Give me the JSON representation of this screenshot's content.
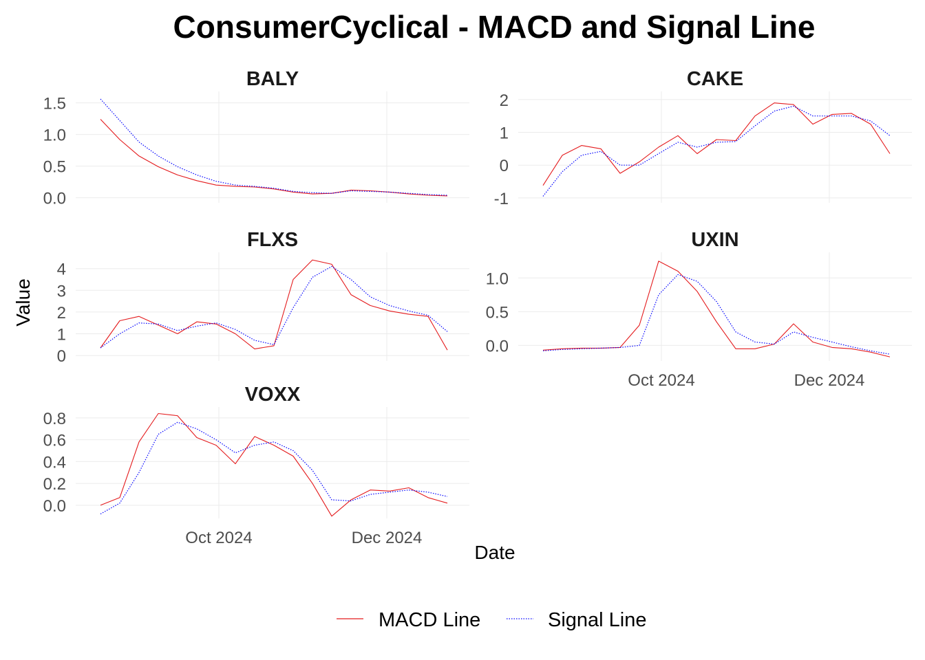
{
  "chart_data": {
    "type": "line",
    "title": "ConsumerCyclical - MACD and Signal Line",
    "xlabel": "Date",
    "ylabel": "Value",
    "date_ticks": [
      "Oct 2024",
      "Dec 2024"
    ],
    "x_range": [
      "2024-08-10",
      "2024-12-31"
    ],
    "legend_position": "bottom",
    "legend": [
      {
        "name": "MACD Line",
        "color": "#e41a1c",
        "style": "solid"
      },
      {
        "name": "Signal Line",
        "color": "#0000ff",
        "style": "dotted"
      }
    ],
    "panels": [
      {
        "name": "BALY",
        "ylim": [
          -0.08,
          1.68
        ],
        "yticks": [
          0.0,
          0.5,
          1.0,
          1.5
        ],
        "ytick_labels": [
          "0.0",
          "0.5",
          "1.0",
          "1.5"
        ],
        "series": [
          {
            "name": "MACD Line",
            "x": [
              "2024-08-19",
              "2024-08-26",
              "2024-09-02",
              "2024-09-09",
              "2024-09-16",
              "2024-09-23",
              "2024-09-30",
              "2024-10-07",
              "2024-10-14",
              "2024-10-21",
              "2024-10-28",
              "2024-11-04",
              "2024-11-11",
              "2024-11-18",
              "2024-11-25",
              "2024-12-02",
              "2024-12-09",
              "2024-12-16",
              "2024-12-23"
            ],
            "values": [
              1.24,
              0.92,
              0.66,
              0.49,
              0.36,
              0.27,
              0.2,
              0.18,
              0.17,
              0.14,
              0.09,
              0.06,
              0.07,
              0.12,
              0.11,
              0.09,
              0.06,
              0.04,
              0.03
            ]
          },
          {
            "name": "Signal Line",
            "x": [
              "2024-08-19",
              "2024-08-26",
              "2024-09-02",
              "2024-09-09",
              "2024-09-16",
              "2024-09-23",
              "2024-09-30",
              "2024-10-07",
              "2024-10-14",
              "2024-10-21",
              "2024-10-28",
              "2024-11-04",
              "2024-11-11",
              "2024-11-18",
              "2024-11-25",
              "2024-12-02",
              "2024-12-09",
              "2024-12-16",
              "2024-12-23"
            ],
            "values": [
              1.56,
              1.22,
              0.88,
              0.66,
              0.49,
              0.36,
              0.26,
              0.2,
              0.18,
              0.15,
              0.1,
              0.08,
              0.07,
              0.11,
              0.1,
              0.09,
              0.07,
              0.05,
              0.04
            ]
          }
        ]
      },
      {
        "name": "CAKE",
        "ylim": [
          -1.15,
          2.25
        ],
        "yticks": [
          -1,
          0,
          1,
          2
        ],
        "ytick_labels": [
          "-1",
          "0",
          "1",
          "2"
        ],
        "series": [
          {
            "name": "MACD Line",
            "x": [
              "2024-08-19",
              "2024-08-26",
              "2024-09-02",
              "2024-09-09",
              "2024-09-16",
              "2024-09-23",
              "2024-09-30",
              "2024-10-07",
              "2024-10-14",
              "2024-10-21",
              "2024-10-28",
              "2024-11-04",
              "2024-11-11",
              "2024-11-18",
              "2024-11-25",
              "2024-12-02",
              "2024-12-09",
              "2024-12-16",
              "2024-12-23"
            ],
            "values": [
              -0.62,
              0.3,
              0.6,
              0.5,
              -0.25,
              0.1,
              0.55,
              0.9,
              0.35,
              0.78,
              0.75,
              1.5,
              1.9,
              1.85,
              1.25,
              1.55,
              1.58,
              1.25,
              0.35
            ]
          },
          {
            "name": "Signal Line",
            "x": [
              "2024-08-19",
              "2024-08-26",
              "2024-09-02",
              "2024-09-09",
              "2024-09-16",
              "2024-09-23",
              "2024-09-30",
              "2024-10-07",
              "2024-10-14",
              "2024-10-21",
              "2024-10-28",
              "2024-11-04",
              "2024-11-11",
              "2024-11-18",
              "2024-11-25",
              "2024-12-02",
              "2024-12-09",
              "2024-12-16",
              "2024-12-23"
            ],
            "values": [
              -0.95,
              -0.2,
              0.3,
              0.42,
              0.0,
              0.0,
              0.35,
              0.7,
              0.55,
              0.7,
              0.72,
              1.2,
              1.65,
              1.8,
              1.5,
              1.5,
              1.5,
              1.35,
              0.9
            ]
          }
        ]
      },
      {
        "name": "FLXS",
        "ylim": [
          -0.25,
          4.75
        ],
        "yticks": [
          0,
          1,
          2,
          3,
          4
        ],
        "ytick_labels": [
          "0",
          "1",
          "2",
          "3",
          "4"
        ],
        "series": [
          {
            "name": "MACD Line",
            "x": [
              "2024-08-19",
              "2024-08-26",
              "2024-09-02",
              "2024-09-09",
              "2024-09-16",
              "2024-09-23",
              "2024-09-30",
              "2024-10-07",
              "2024-10-14",
              "2024-10-21",
              "2024-10-28",
              "2024-11-04",
              "2024-11-11",
              "2024-11-18",
              "2024-11-25",
              "2024-12-02",
              "2024-12-09",
              "2024-12-16",
              "2024-12-23"
            ],
            "values": [
              0.35,
              1.6,
              1.8,
              1.4,
              1.0,
              1.55,
              1.45,
              1.0,
              0.3,
              0.45,
              3.5,
              4.4,
              4.2,
              2.8,
              2.3,
              2.05,
              1.9,
              1.8,
              0.25
            ]
          },
          {
            "name": "Signal Line",
            "x": [
              "2024-08-19",
              "2024-08-26",
              "2024-09-02",
              "2024-09-09",
              "2024-09-16",
              "2024-09-23",
              "2024-09-30",
              "2024-10-07",
              "2024-10-14",
              "2024-10-21",
              "2024-10-28",
              "2024-11-04",
              "2024-11-11",
              "2024-11-18",
              "2024-11-25",
              "2024-12-02",
              "2024-12-09",
              "2024-12-16",
              "2024-12-23"
            ],
            "values": [
              0.35,
              1.0,
              1.5,
              1.45,
              1.15,
              1.35,
              1.5,
              1.2,
              0.7,
              0.5,
              2.2,
              3.6,
              4.1,
              3.5,
              2.7,
              2.3,
              2.05,
              1.85,
              1.1
            ]
          }
        ]
      },
      {
        "name": "UXIN",
        "ylim": [
          -0.23,
          1.38
        ],
        "yticks": [
          0.0,
          0.5,
          1.0
        ],
        "ytick_labels": [
          "0.0",
          "0.5",
          "1.0"
        ],
        "series": [
          {
            "name": "MACD Line",
            "x": [
              "2024-08-19",
              "2024-08-26",
              "2024-09-02",
              "2024-09-09",
              "2024-09-16",
              "2024-09-23",
              "2024-09-30",
              "2024-10-07",
              "2024-10-14",
              "2024-10-21",
              "2024-10-28",
              "2024-11-04",
              "2024-11-11",
              "2024-11-18",
              "2024-11-25",
              "2024-12-02",
              "2024-12-09",
              "2024-12-16",
              "2024-12-23"
            ],
            "values": [
              -0.07,
              -0.05,
              -0.04,
              -0.04,
              -0.03,
              0.3,
              1.25,
              1.1,
              0.8,
              0.35,
              -0.05,
              -0.05,
              0.02,
              0.32,
              0.05,
              -0.03,
              -0.05,
              -0.1,
              -0.17
            ]
          },
          {
            "name": "Signal Line",
            "x": [
              "2024-08-19",
              "2024-08-26",
              "2024-09-02",
              "2024-09-09",
              "2024-09-16",
              "2024-09-23",
              "2024-09-30",
              "2024-10-07",
              "2024-10-14",
              "2024-10-21",
              "2024-10-28",
              "2024-11-04",
              "2024-11-11",
              "2024-11-18",
              "2024-11-25",
              "2024-12-02",
              "2024-12-09",
              "2024-12-16",
              "2024-12-23"
            ],
            "values": [
              -0.08,
              -0.06,
              -0.05,
              -0.04,
              -0.03,
              0.0,
              0.75,
              1.05,
              0.95,
              0.65,
              0.2,
              0.05,
              0.02,
              0.2,
              0.12,
              0.05,
              -0.02,
              -0.08,
              -0.13
            ]
          }
        ]
      },
      {
        "name": "VOXX",
        "ylim": [
          -0.12,
          0.9
        ],
        "yticks": [
          0.0,
          0.2,
          0.4,
          0.6,
          0.8
        ],
        "ytick_labels": [
          "0.0",
          "0.2",
          "0.4",
          "0.6",
          "0.8"
        ],
        "series": [
          {
            "name": "MACD Line",
            "x": [
              "2024-08-19",
              "2024-08-26",
              "2024-09-02",
              "2024-09-09",
              "2024-09-16",
              "2024-09-23",
              "2024-09-30",
              "2024-10-07",
              "2024-10-14",
              "2024-10-21",
              "2024-10-28",
              "2024-11-04",
              "2024-11-11",
              "2024-11-18",
              "2024-11-25",
              "2024-12-02",
              "2024-12-09",
              "2024-12-16",
              "2024-12-23"
            ],
            "values": [
              0.0,
              0.07,
              0.58,
              0.84,
              0.82,
              0.62,
              0.55,
              0.38,
              0.63,
              0.55,
              0.45,
              0.2,
              -0.1,
              0.05,
              0.14,
              0.13,
              0.16,
              0.07,
              0.02
            ]
          },
          {
            "name": "Signal Line",
            "x": [
              "2024-08-19",
              "2024-08-26",
              "2024-09-02",
              "2024-09-09",
              "2024-09-16",
              "2024-09-23",
              "2024-09-30",
              "2024-10-07",
              "2024-10-14",
              "2024-10-21",
              "2024-10-28",
              "2024-11-04",
              "2024-11-11",
              "2024-11-18",
              "2024-11-25",
              "2024-12-02",
              "2024-12-09",
              "2024-12-16",
              "2024-12-23"
            ],
            "values": [
              -0.08,
              0.02,
              0.3,
              0.65,
              0.76,
              0.7,
              0.6,
              0.48,
              0.55,
              0.58,
              0.5,
              0.32,
              0.05,
              0.04,
              0.1,
              0.12,
              0.14,
              0.12,
              0.08
            ]
          }
        ]
      }
    ]
  }
}
